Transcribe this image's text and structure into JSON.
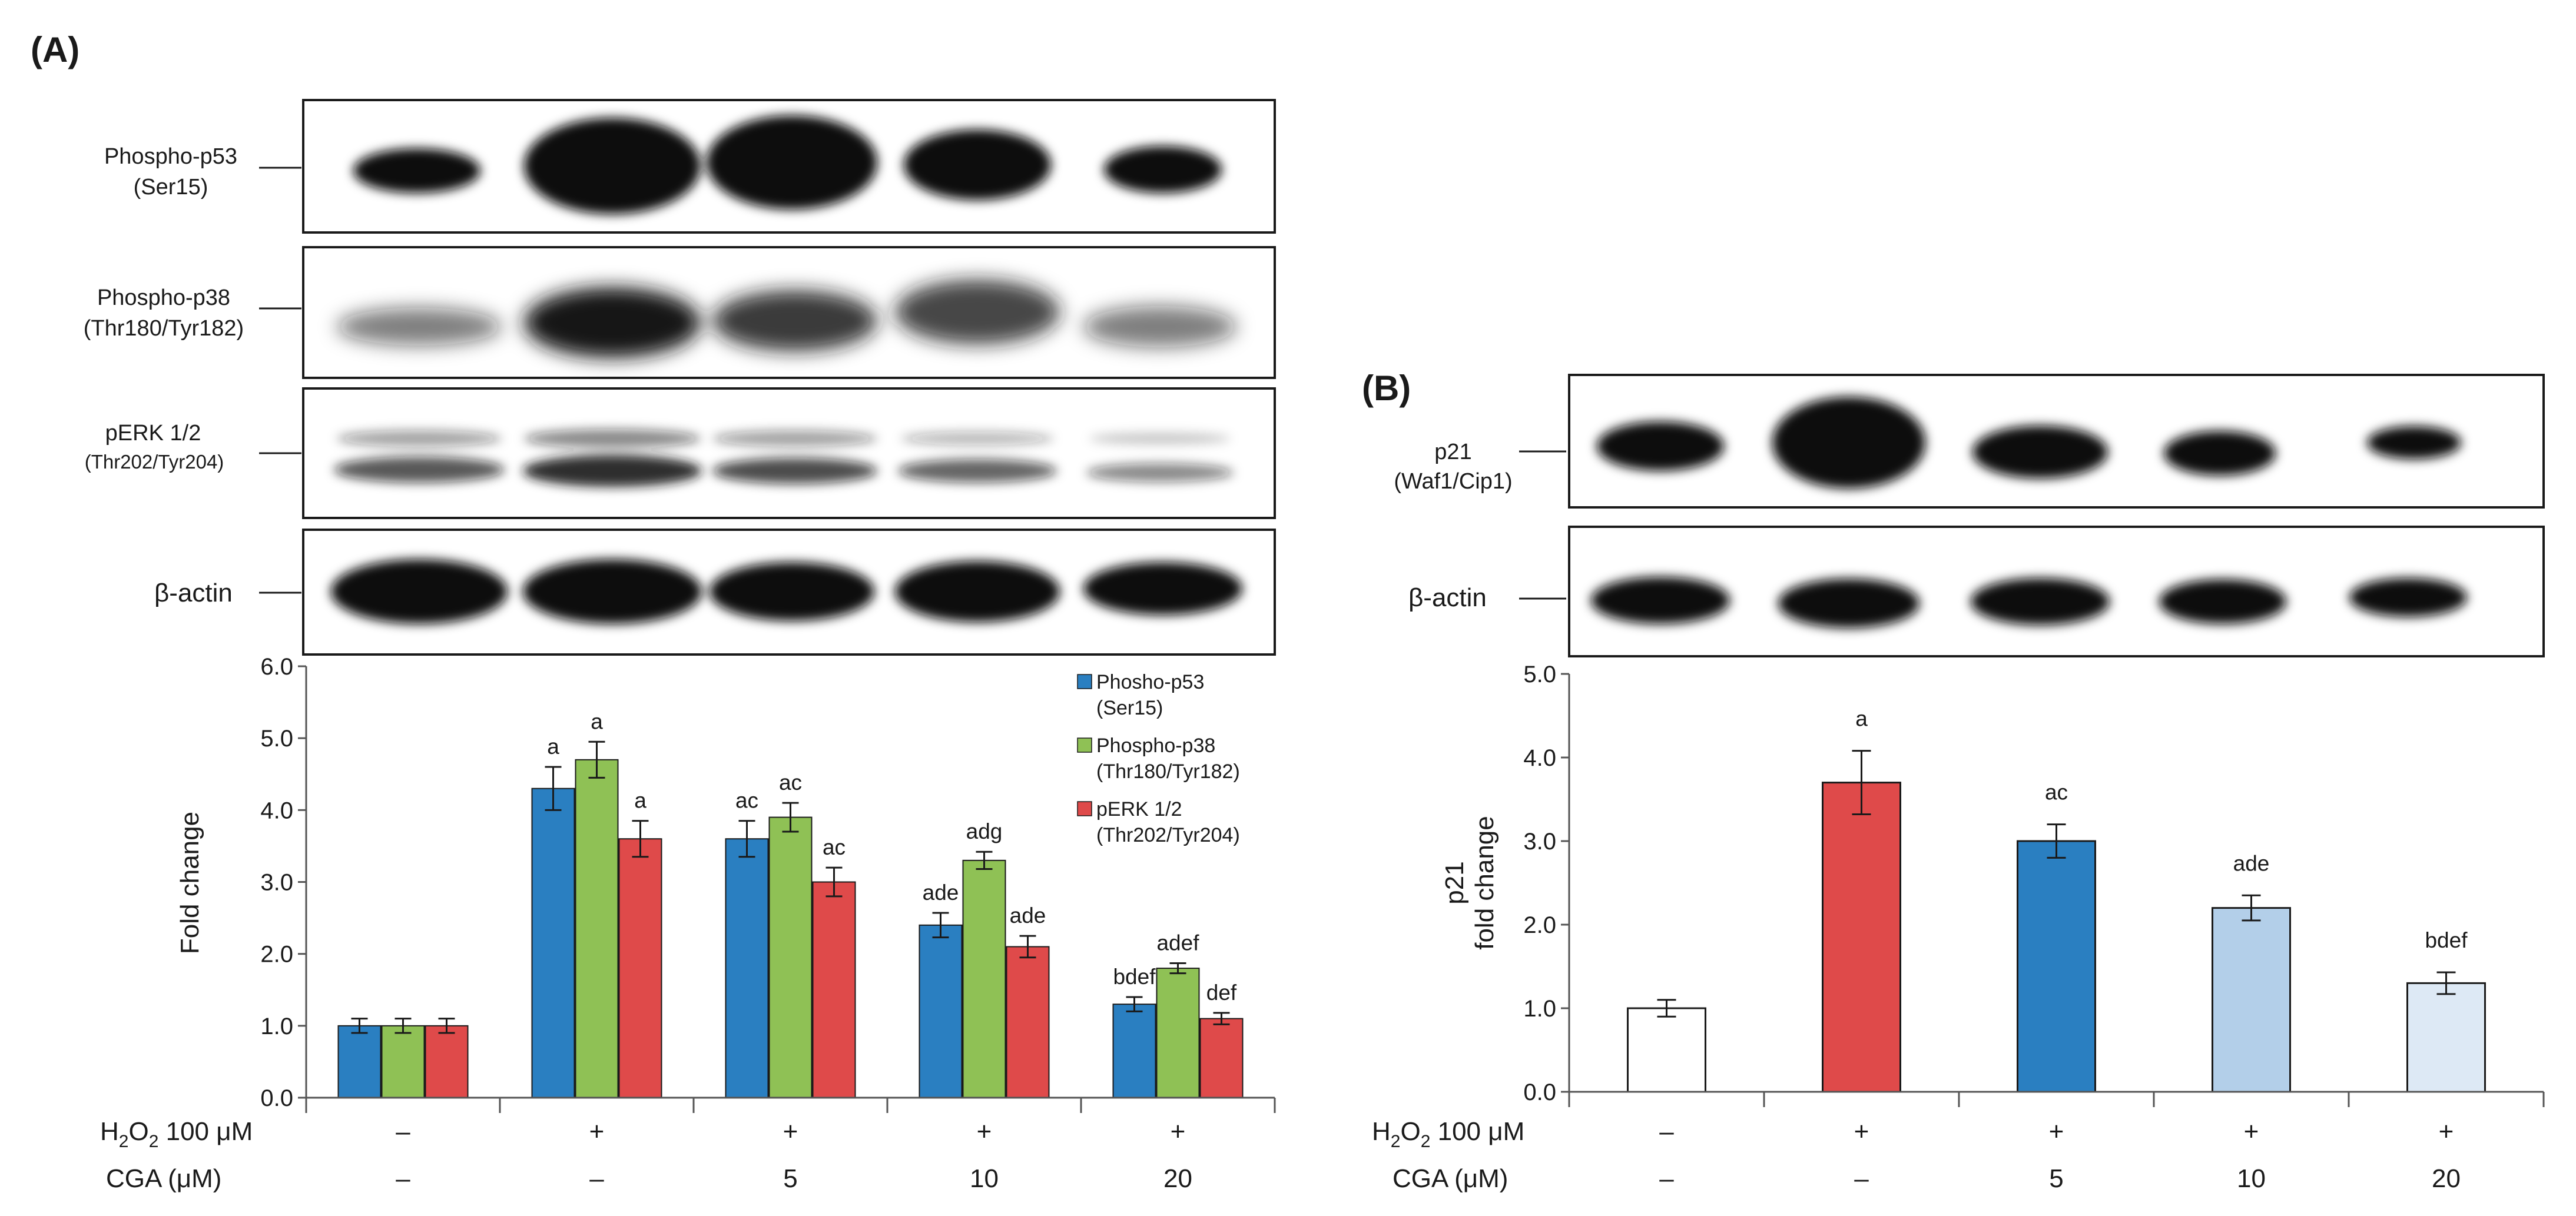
{
  "panels": {
    "a": "(A)",
    "b": "(B)"
  },
  "colors": {
    "p53": "#2a7fc1",
    "p38": "#8fc155",
    "perk": "#df4a4a",
    "b_bars": [
      "#ffffff",
      "#df4a4a",
      "#2a7fc1",
      "#b3cfe9",
      "#dde9f5"
    ]
  },
  "blots_a": [
    {
      "name": "Phospho-p53",
      "sub": "(Ser15)"
    },
    {
      "name": "Phospho-p38",
      "sub": "(Thr180/Tyr182)"
    },
    {
      "name": "pERK 1/2",
      "sub": "(Thr202/Tyr204)"
    },
    {
      "name": "β-actin",
      "sub": ""
    }
  ],
  "blots_b": [
    {
      "name": "p21",
      "sub": "(Waf1/Cip1)"
    },
    {
      "name": "β-actin",
      "sub": ""
    }
  ],
  "conditions": {
    "h2o2_label": "H",
    "h2o2_sub": "2",
    "h2o2_mid": "O",
    "h2o2_sub2": "2",
    "h2o2_tail": " 100 μM",
    "cga_label": "CGA (μM)",
    "h2o2": [
      "–",
      "+",
      "+",
      "+",
      "+"
    ],
    "cga": [
      "–",
      "–",
      "5",
      "10",
      "20"
    ]
  },
  "chart_data": [
    {
      "type": "bar",
      "panel": "A",
      "ylabel": "Fold change",
      "ylim": [
        0,
        6
      ],
      "yticks": [
        "0.0",
        "1.0",
        "2.0",
        "3.0",
        "4.0",
        "5.0",
        "6.0"
      ],
      "legend_position": "top-right",
      "categories": [
        "–/–",
        "+/–",
        "+/5",
        "+/10",
        "+/20"
      ],
      "series": [
        {
          "name": "Phosho-p53",
          "name_sub": "(Ser15)",
          "values": [
            1.0,
            4.3,
            3.6,
            2.4,
            1.3
          ],
          "errors": [
            0.1,
            0.3,
            0.25,
            0.17,
            0.1
          ],
          "labels": [
            "",
            "a",
            "ac",
            "ade",
            "bdef"
          ]
        },
        {
          "name": "Phospho-p38",
          "name_sub": "(Thr180/Tyr182)",
          "values": [
            1.0,
            4.7,
            3.9,
            3.3,
            1.8
          ],
          "errors": [
            0.1,
            0.25,
            0.2,
            0.12,
            0.07
          ],
          "labels": [
            "",
            "a",
            "ac",
            "adg",
            "adef"
          ]
        },
        {
          "name": "pERK 1/2",
          "name_sub": "(Thr202/Tyr204)",
          "values": [
            1.0,
            3.6,
            3.0,
            2.1,
            1.1
          ],
          "errors": [
            0.1,
            0.25,
            0.2,
            0.15,
            0.08
          ],
          "labels": [
            "",
            "a",
            "ac",
            "ade",
            "def"
          ]
        }
      ]
    },
    {
      "type": "bar",
      "panel": "B",
      "ylabel": "p21",
      "ylabel2": "fold change",
      "ylim": [
        0,
        5
      ],
      "yticks": [
        "0.0",
        "1.0",
        "2.0",
        "3.0",
        "4.0",
        "5.0"
      ],
      "categories": [
        "–/–",
        "+/–",
        "+/5",
        "+/10",
        "+/20"
      ],
      "values": [
        1.0,
        3.7,
        3.0,
        2.2,
        1.3
      ],
      "errors": [
        0.1,
        0.38,
        0.2,
        0.15,
        0.13
      ],
      "labels": [
        "",
        "a",
        "ac",
        "ade",
        "bdef"
      ]
    }
  ]
}
